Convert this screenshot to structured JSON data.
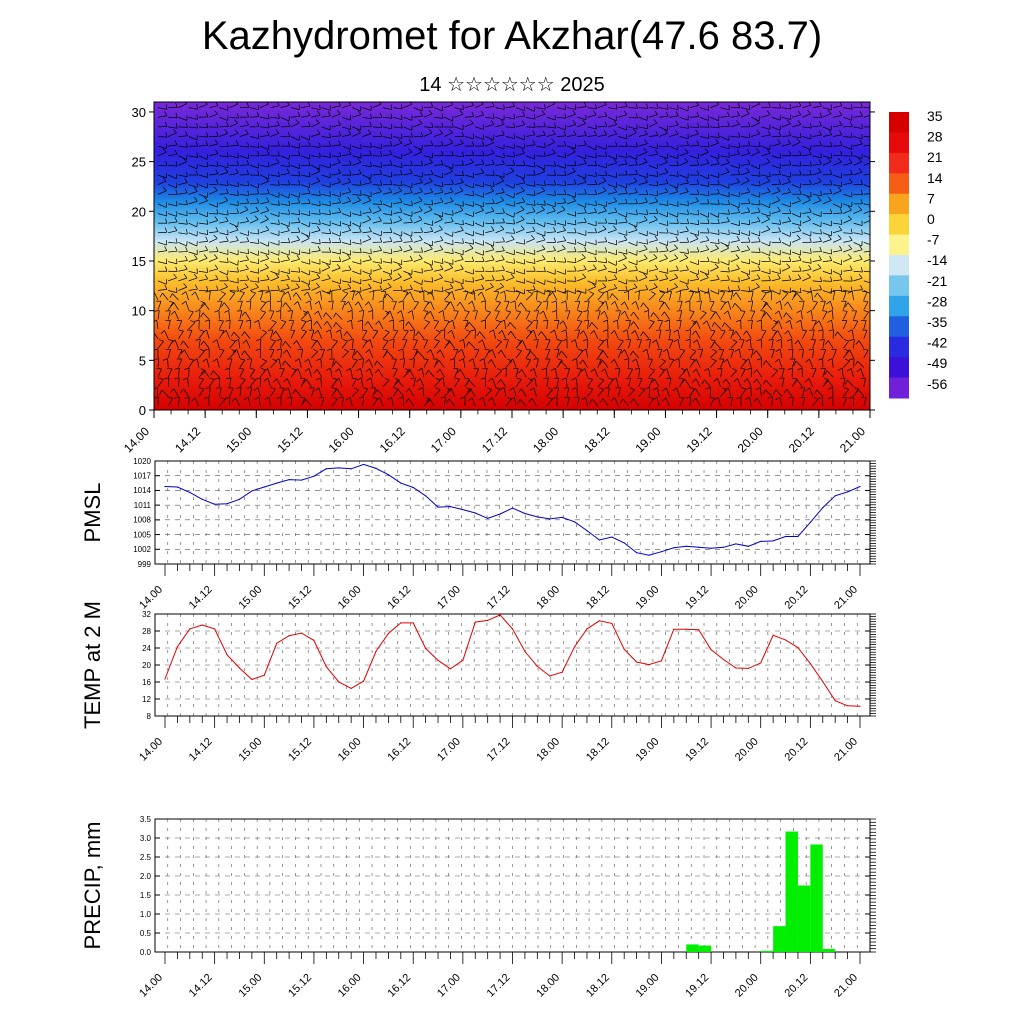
{
  "header": {
    "title": "Kazhydromet for Akzhar(47.6 83.7)",
    "subtitle": "14 ☆☆☆☆☆☆ 2025"
  },
  "time_labels": [
    "14.00",
    "14.12",
    "15.00",
    "15.12",
    "16.00",
    "16.12",
    "17.00",
    "17.12",
    "18.00",
    "18.12",
    "19.00",
    "19.12",
    "20.00",
    "20.12",
    "21.00"
  ],
  "chart_data": [
    {
      "type": "heatmap",
      "name": "cross-section",
      "ylabel": "",
      "yticks": [
        0,
        5,
        10,
        15,
        20,
        25,
        30
      ],
      "ylim": [
        0,
        31
      ],
      "colorbar_labels": [
        "35",
        "28",
        "21",
        "14",
        "7",
        "0",
        "-7",
        "-14",
        "-21",
        "-28",
        "-35",
        "-42",
        "-49",
        "-56"
      ],
      "colorbar_colors": [
        "#d70000",
        "#e80a0a",
        "#f22a1c",
        "#f55d14",
        "#f8a41c",
        "#fbd43a",
        "#fdf38c",
        "#cfe8f4",
        "#77c6ee",
        "#2fa4e8",
        "#1f5fe0",
        "#2a2ae0",
        "#3b10d8",
        "#7020d8"
      ],
      "layer_colors": [
        {
          "h": 0,
          "c": "#d40000"
        },
        {
          "h": 3,
          "c": "#e81a0c"
        },
        {
          "h": 7,
          "c": "#f24a10"
        },
        {
          "h": 10,
          "c": "#f8861c"
        },
        {
          "h": 13,
          "c": "#fbc02c"
        },
        {
          "h": 15,
          "c": "#fdea70"
        },
        {
          "h": 17,
          "c": "#c8e4f4"
        },
        {
          "h": 19,
          "c": "#60bcee"
        },
        {
          "h": 21,
          "c": "#1c8ae4"
        },
        {
          "h": 23,
          "c": "#1f3fe0"
        },
        {
          "h": 26,
          "c": "#3320de"
        },
        {
          "h": 31,
          "c": "#7a28d8"
        }
      ]
    },
    {
      "type": "line",
      "name": "PMSL",
      "ylabel": "PMSL",
      "ylim": [
        999,
        1020
      ],
      "yticks": [
        999,
        1002,
        1005,
        1008,
        1011,
        1014,
        1017,
        1020
      ],
      "color": "#0000d0",
      "x": [
        0,
        0.125,
        0.25,
        0.375,
        0.5,
        0.625,
        0.75,
        0.875,
        1,
        1.125,
        1.25,
        1.375,
        1.5,
        1.625,
        1.75,
        1.875,
        2,
        2.125,
        2.25,
        2.375,
        2.5,
        2.625,
        2.75,
        2.875,
        3,
        3.125,
        3.25,
        3.375,
        3.5,
        3.625,
        3.75,
        3.875,
        4,
        4.125,
        4.25,
        4.375,
        4.5,
        4.625,
        4.75,
        4.875,
        5,
        5.125,
        5.25,
        5.375,
        5.5,
        5.625,
        5.75,
        5.875,
        6,
        6.125,
        6.25,
        6.375,
        6.5,
        6.625,
        6.75,
        6.875,
        7
      ],
      "values": [
        1014.8,
        1014.7,
        1013.6,
        1012.2,
        1011.2,
        1011.3,
        1012.2,
        1013.9,
        1014.7,
        1015.5,
        1016.2,
        1016.1,
        1016.9,
        1018.4,
        1018.6,
        1018.4,
        1019.3,
        1018.5,
        1017.2,
        1015.5,
        1014.6,
        1012.9,
        1010.6,
        1010.7,
        1010.1,
        1009.4,
        1008.3,
        1009.2,
        1010.4,
        1009.3,
        1008.6,
        1008.2,
        1008.5,
        1007.6,
        1005.8,
        1003.9,
        1004.5,
        1003.3,
        1001.3,
        1000.8,
        1001.5,
        1002.3,
        1002.6,
        1002.4,
        1002.2,
        1002.4,
        1003.1,
        1002.6,
        1003.6,
        1003.7,
        1004.6,
        1004.6,
        1007.5,
        1010.5,
        1012.9,
        1013.7,
        1014.8
      ]
    },
    {
      "type": "line",
      "name": "TEMP at 2 M",
      "ylabel": "TEMP at 2 M",
      "ylim": [
        8,
        32
      ],
      "yticks": [
        8,
        12,
        16,
        20,
        24,
        28,
        32
      ],
      "color": "#e00000",
      "x": [
        0,
        0.125,
        0.25,
        0.375,
        0.5,
        0.625,
        0.75,
        0.875,
        1,
        1.125,
        1.25,
        1.375,
        1.5,
        1.625,
        1.75,
        1.875,
        2,
        2.125,
        2.25,
        2.375,
        2.5,
        2.625,
        2.75,
        2.875,
        3,
        3.125,
        3.25,
        3.375,
        3.5,
        3.625,
        3.75,
        3.875,
        4,
        4.125,
        4.25,
        4.375,
        4.5,
        4.625,
        4.75,
        4.875,
        5,
        5.125,
        5.25,
        5.375,
        5.5,
        5.625,
        5.75,
        5.875,
        6,
        6.125,
        6.25,
        6.375,
        6.5,
        6.625,
        6.75,
        6.875,
        7
      ],
      "values": [
        16.7,
        24.3,
        28.5,
        29.4,
        28.5,
        22.4,
        19.3,
        16.6,
        17.6,
        25.1,
        26.9,
        27.5,
        25.8,
        19.6,
        16.0,
        14.5,
        16.2,
        23.2,
        27.4,
        29.9,
        29.9,
        23.9,
        21.1,
        19.1,
        21.1,
        30.1,
        30.5,
        31.8,
        28.5,
        23.2,
        19.7,
        17.4,
        18.3,
        24.3,
        28.5,
        30.4,
        29.8,
        23.7,
        20.7,
        20.1,
        21.0,
        28.4,
        28.4,
        28.3,
        23.6,
        21.3,
        19.3,
        19.2,
        20.5,
        27.0,
        25.9,
        24.1,
        20.3,
        16.1,
        11.6,
        10.4,
        10.3
      ]
    },
    {
      "type": "bar",
      "name": "PRECIP, mm",
      "ylabel": "PRECIP, mm",
      "ylim": [
        0,
        3.5
      ],
      "yticks": [
        "0.0",
        "0.5",
        "1.0",
        "1.5",
        "2.0",
        "2.5",
        "3.0",
        "3.5"
      ],
      "color": "#00ee00",
      "x": [
        5.25,
        5.375,
        6.0,
        6.125,
        6.25,
        6.375,
        6.5,
        6.625
      ],
      "values": [
        0.2,
        0.17,
        0.03,
        0.68,
        3.17,
        1.75,
        2.83,
        0.08
      ]
    }
  ]
}
